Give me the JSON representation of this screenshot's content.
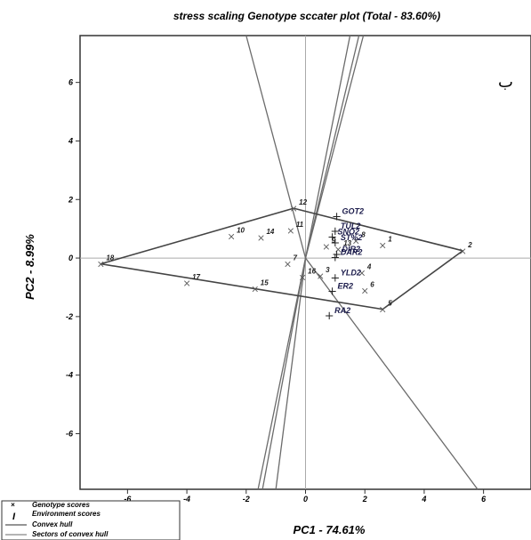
{
  "chart_data": {
    "type": "scatter",
    "title": "stress scaling Genotype sccater plot (Total - 83.60%)",
    "xlabel": "PC1 - 74.61%",
    "ylabel": "PC2 - 8.99%",
    "xlim": [
      -7.6,
      7.6
    ],
    "ylim": [
      -7.9,
      7.6
    ],
    "x_ticks": [
      "-6",
      "-4",
      "-2",
      "0",
      "2",
      "4",
      "6"
    ],
    "y_ticks": [
      "6",
      "4",
      "2",
      "0",
      "-2",
      "-4",
      "-6"
    ],
    "x_tick_values": [
      -6,
      -4,
      -2,
      0,
      2,
      4,
      6
    ],
    "y_tick_values": [
      6,
      4,
      2,
      0,
      -2,
      -4,
      -6
    ],
    "annotation": "ب",
    "genotypes": [
      {
        "label": "1",
        "x": 2.6,
        "y": 0.45
      },
      {
        "label": "2",
        "x": 5.3,
        "y": 0.25
      },
      {
        "label": "3",
        "x": 0.5,
        "y": -0.6
      },
      {
        "label": "4",
        "x": 1.9,
        "y": -0.5
      },
      {
        "label": "5",
        "x": 2.6,
        "y": -1.75
      },
      {
        "label": "6",
        "x": 2.0,
        "y": -1.1
      },
      {
        "label": "7",
        "x": -0.6,
        "y": -0.2
      },
      {
        "label": "8",
        "x": 1.7,
        "y": 0.6
      },
      {
        "label": "9",
        "x": 0.7,
        "y": 0.4
      },
      {
        "label": "10",
        "x": -2.5,
        "y": 0.75
      },
      {
        "label": "11",
        "x": -0.5,
        "y": 0.95
      },
      {
        "label": "12",
        "x": -0.4,
        "y": 1.7
      },
      {
        "label": "13",
        "x": 1.1,
        "y": 0.3
      },
      {
        "label": "14",
        "x": -1.5,
        "y": 0.7
      },
      {
        "label": "15",
        "x": -1.7,
        "y": -1.05
      },
      {
        "label": "16",
        "x": -0.1,
        "y": -0.65
      },
      {
        "label": "17",
        "x": -4.0,
        "y": -0.85
      },
      {
        "label": "18",
        "x": -6.9,
        "y": -0.2
      }
    ],
    "environments": [
      {
        "label": "GOT2",
        "x": 1.05,
        "y": 1.45
      },
      {
        "label": "TUL2",
        "x": 1.0,
        "y": 0.95
      },
      {
        "label": "SNO2",
        "x": 0.9,
        "y": 0.75
      },
      {
        "label": "ST%2",
        "x": 1.0,
        "y": 0.55
      },
      {
        "label": "DAR2",
        "x": 1.0,
        "y": 0.05
      },
      {
        "label": "DIR2",
        "x": 1.05,
        "y": 0.15
      },
      {
        "label": "YLD2",
        "x": 1.0,
        "y": -0.65
      },
      {
        "label": "ER2",
        "x": 0.9,
        "y": -1.1
      },
      {
        "label": "RA2",
        "x": 0.8,
        "y": -1.95
      }
    ],
    "convex_hull": [
      "12",
      "2",
      "5",
      "18"
    ],
    "sector_lines": [
      {
        "x": -2.0,
        "y": 7.6
      },
      {
        "x": 1.5,
        "y": 7.6
      },
      {
        "x": 1.8,
        "y": 7.6
      },
      {
        "x": 1.95,
        "y": 7.6
      },
      {
        "x": 5.8,
        "y": -7.9
      },
      {
        "x": -1.6,
        "y": -7.9
      },
      {
        "x": -1.45,
        "y": -7.9
      },
      {
        "x": -1.0,
        "y": -7.9
      }
    ],
    "legend": {
      "placement": "bottom-left",
      "entries": [
        "Genotype scores",
        "Environment scores",
        "Convex hull",
        "Sectors of convex hull"
      ]
    },
    "grid": false
  }
}
